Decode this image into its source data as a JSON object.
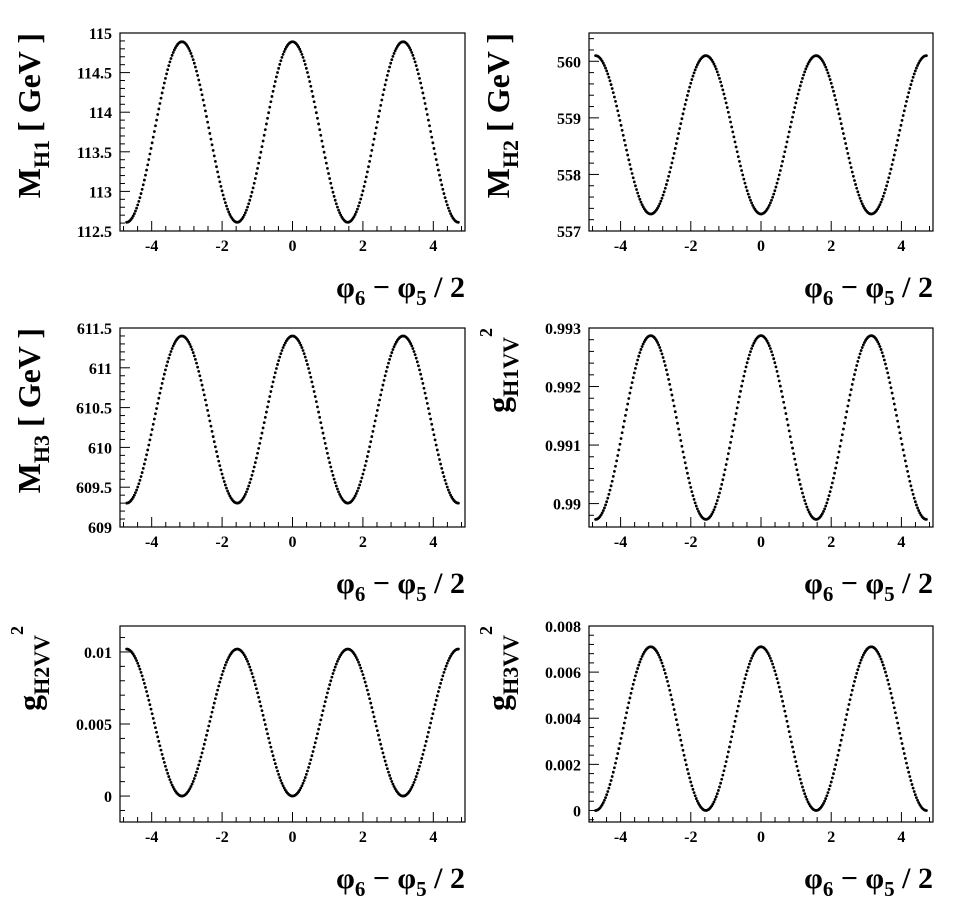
{
  "chart_data": [
    {
      "type": "scatter",
      "title": "",
      "xlabel": "φ6 − φ5 / 2",
      "ylabel": "MH1 [ GeV ]",
      "xlabel_parts": {
        "main": "φ",
        "sub1": "6",
        "mid": " − φ",
        "sub2": "5",
        "tail": " / 2"
      },
      "ylabel_parts": {
        "main": "M",
        "sub": "H1",
        "sup": "",
        "tail": " [ GeV ]"
      },
      "xlim": [
        -4.9,
        4.9
      ],
      "ylim": [
        112.5,
        115
      ],
      "xticks": [
        -4,
        -2,
        0,
        2,
        4
      ],
      "xtick_labels": [
        "-4",
        "-2",
        "0",
        "2",
        "4"
      ],
      "yticks": [
        112.5,
        113,
        113.5,
        114,
        114.5,
        115
      ],
      "ytick_labels": [
        "112.5",
        "113",
        "113.5",
        "114",
        "114.5",
        "115"
      ],
      "series": [
        {
          "x_range": [
            -4.712,
            4.712
          ],
          "n_points": 300,
          "model": "cos2x",
          "mean": 113.75,
          "amplitude": 1.14
        }
      ],
      "grid": false,
      "legend": "none"
    },
    {
      "type": "scatter",
      "title": "",
      "xlabel": "φ6 − φ5 / 2",
      "ylabel": "MH2 [ GeV ]",
      "xlabel_parts": {
        "main": "φ",
        "sub1": "6",
        "mid": " − φ",
        "sub2": "5",
        "tail": " / 2"
      },
      "ylabel_parts": {
        "main": "M",
        "sub": "H2",
        "sup": "",
        "tail": " [ GeV ]"
      },
      "xlim": [
        -4.9,
        4.9
      ],
      "ylim": [
        557,
        560.5
      ],
      "xticks": [
        -4,
        -2,
        0,
        2,
        4
      ],
      "xtick_labels": [
        "-4",
        "-2",
        "0",
        "2",
        "4"
      ],
      "yticks": [
        557,
        558,
        559,
        560
      ],
      "ytick_labels": [
        "557",
        "558",
        "559",
        "560"
      ],
      "series": [
        {
          "x_range": [
            -4.712,
            4.712
          ],
          "n_points": 300,
          "model": "cos2x",
          "mean": 558.7,
          "amplitude": -1.4
        }
      ],
      "grid": false,
      "legend": "none"
    },
    {
      "type": "scatter",
      "title": "",
      "xlabel": "φ6 − φ5 / 2",
      "ylabel": "MH3 [ GeV ]",
      "xlabel_parts": {
        "main": "φ",
        "sub1": "6",
        "mid": " − φ",
        "sub2": "5",
        "tail": " / 2"
      },
      "ylabel_parts": {
        "main": "M",
        "sub": "H3",
        "sup": "",
        "tail": " [ GeV ]"
      },
      "xlim": [
        -4.9,
        4.9
      ],
      "ylim": [
        609,
        611.5
      ],
      "xticks": [
        -4,
        -2,
        0,
        2,
        4
      ],
      "xtick_labels": [
        "-4",
        "-2",
        "0",
        "2",
        "4"
      ],
      "yticks": [
        609,
        609.5,
        610,
        610.5,
        611,
        611.5
      ],
      "ytick_labels": [
        "609",
        "609.5",
        "610",
        "610.5",
        "611",
        "611.5"
      ],
      "series": [
        {
          "x_range": [
            -4.712,
            4.712
          ],
          "n_points": 300,
          "model": "cos2x",
          "mean": 610.35,
          "amplitude": 1.05
        }
      ],
      "grid": false,
      "legend": "none"
    },
    {
      "type": "scatter",
      "title": "",
      "xlabel": "φ6 − φ5 / 2",
      "ylabel": "g2H1VV",
      "xlabel_parts": {
        "main": "φ",
        "sub1": "6",
        "mid": " − φ",
        "sub2": "5",
        "tail": " / 2"
      },
      "ylabel_parts": {
        "main": "g",
        "sub": "H1VV",
        "sup": "2",
        "tail": ""
      },
      "xlim": [
        -4.9,
        4.9
      ],
      "ylim": [
        0.9896,
        0.993
      ],
      "xticks": [
        -4,
        -2,
        0,
        2,
        4
      ],
      "xtick_labels": [
        "-4",
        "-2",
        "0",
        "2",
        "4"
      ],
      "yticks": [
        0.99,
        0.991,
        0.992,
        0.993
      ],
      "ytick_labels": [
        "0.99",
        "0.991",
        "0.992",
        "0.993"
      ],
      "series": [
        {
          "x_range": [
            -4.712,
            4.712
          ],
          "n_points": 300,
          "model": "cos2x",
          "mean": 0.9913,
          "amplitude": 0.00157
        }
      ],
      "grid": false,
      "legend": "none"
    },
    {
      "type": "scatter",
      "title": "",
      "xlabel": "φ6 − φ5 / 2",
      "ylabel": "g2H2VV",
      "xlabel_parts": {
        "main": "φ",
        "sub1": "6",
        "mid": " − φ",
        "sub2": "5",
        "tail": " / 2"
      },
      "ylabel_parts": {
        "main": "g",
        "sub": "H2VV",
        "sup": "2",
        "tail": ""
      },
      "xlim": [
        -4.9,
        4.9
      ],
      "ylim": [
        -0.0018,
        0.0118
      ],
      "xticks": [
        -4,
        -2,
        0,
        2,
        4
      ],
      "xtick_labels": [
        "-4",
        "-2",
        "0",
        "2",
        "4"
      ],
      "yticks": [
        0,
        0.005,
        0.01
      ],
      "ytick_labels": [
        "0",
        "0.005",
        "0.01"
      ],
      "series": [
        {
          "x_range": [
            -4.712,
            4.712
          ],
          "n_points": 300,
          "model": "cos2x",
          "mean": 0.0051,
          "amplitude": -0.0051
        }
      ],
      "grid": false,
      "legend": "none"
    },
    {
      "type": "scatter",
      "title": "",
      "xlabel": "φ6 − φ5 / 2",
      "ylabel": "g2H3VV",
      "xlabel_parts": {
        "main": "φ",
        "sub1": "6",
        "mid": " − φ",
        "sub2": "5",
        "tail": " / 2"
      },
      "ylabel_parts": {
        "main": "g",
        "sub": "H3VV",
        "sup": "2",
        "tail": ""
      },
      "xlim": [
        -4.9,
        4.9
      ],
      "ylim": [
        -0.0005,
        0.008
      ],
      "xticks": [
        -4,
        -2,
        0,
        2,
        4
      ],
      "xtick_labels": [
        "-4",
        "-2",
        "0",
        "2",
        "4"
      ],
      "yticks": [
        0,
        0.002,
        0.004,
        0.006,
        0.008
      ],
      "ytick_labels": [
        "0",
        "0.002",
        "0.004",
        "0.006",
        "0.008"
      ],
      "series": [
        {
          "x_range": [
            -4.712,
            4.712
          ],
          "n_points": 300,
          "model": "cos2x",
          "mean": 0.00355,
          "amplitude": 0.00355
        }
      ],
      "grid": false,
      "legend": "none"
    }
  ],
  "colors": {
    "marker": "#000000",
    "frame": "#000000",
    "background": "#ffffff"
  }
}
